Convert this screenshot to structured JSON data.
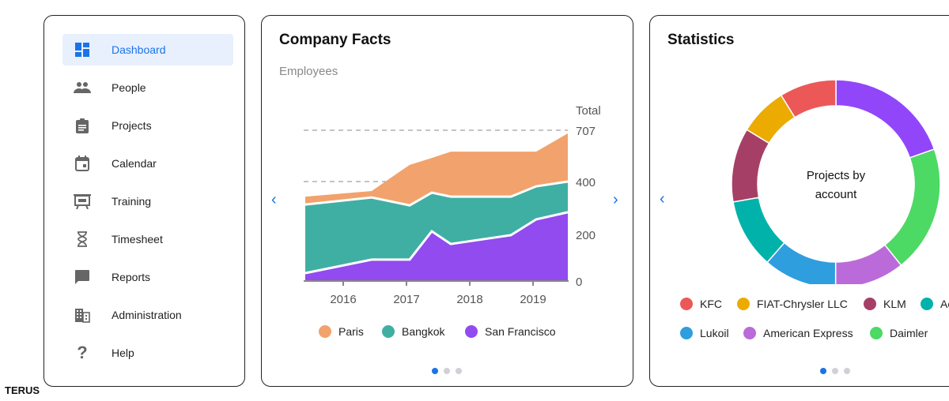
{
  "sidebar": {
    "items": [
      {
        "label": "Dashboard",
        "icon": "dashboard-icon",
        "active": true
      },
      {
        "label": "People",
        "icon": "people-icon"
      },
      {
        "label": "Projects",
        "icon": "clipboard-icon"
      },
      {
        "label": "Calendar",
        "icon": "calendar-icon"
      },
      {
        "label": "Training",
        "icon": "presentation-icon"
      },
      {
        "label": "Timesheet",
        "icon": "hourglass-icon"
      },
      {
        "label": "Reports",
        "icon": "reports-icon"
      },
      {
        "label": "Administration",
        "icon": "building-icon"
      },
      {
        "label": "Help",
        "icon": "help-icon"
      }
    ]
  },
  "brand": "TERUS",
  "company_facts": {
    "title": "Company Facts",
    "subtitle": "Employees",
    "page": 1,
    "pages": 3
  },
  "statistics": {
    "title": "Statistics",
    "page": 1,
    "pages": 3
  },
  "colors": {
    "accent": "#1a73e8",
    "paris": "#f2a26c",
    "bangkok": "#40afa3",
    "san_francisco": "#914bef"
  },
  "chart_data": [
    {
      "type": "area",
      "stacked": true,
      "ylabel": "Total",
      "y_ticks": [
        0,
        200,
        400,
        707
      ],
      "x_ticks": [
        "2016",
        "2017",
        "2018",
        "2019"
      ],
      "x": [
        2015.4,
        2016.45,
        2017.05,
        2017.4,
        2017.7,
        2018.65,
        2019.05,
        2019.55
      ],
      "series": [
        {
          "name": "San Francisco",
          "color": "#914bef",
          "values": [
            34,
            92,
            92,
            212,
            159,
            197,
            257,
            284
          ]
        },
        {
          "name": "Bangkok",
          "color": "#40afa3",
          "values": [
            279,
            248,
            218,
            146,
            184,
            146,
            125,
            116
          ]
        },
        {
          "name": "Paris",
          "color": "#f2a26c",
          "values": [
            30,
            24,
            190,
            183,
            236,
            236,
            197,
            288
          ]
        }
      ],
      "gridlines": "dashed at 400 and 707",
      "legend": "bottom"
    },
    {
      "type": "pie",
      "donut": true,
      "center_label": "Projects by account",
      "slices": [
        {
          "name": "",
          "value": 19.6,
          "color": "#9146fa"
        },
        {
          "name": "Daimler",
          "value": 19.7,
          "color": "#4cd964"
        },
        {
          "name": "American Express",
          "value": 10.8,
          "color": "#bb6bd9"
        },
        {
          "name": "Lukoil",
          "value": 11.4,
          "color": "#2e9ede"
        },
        {
          "name": "Ac",
          "value": 10.8,
          "color": "#00b2a9"
        },
        {
          "name": "KLM",
          "value": 11.5,
          "color": "#a63f66"
        },
        {
          "name": "FIAT-Chrysler LLC",
          "value": 7.5,
          "color": "#ebab00"
        },
        {
          "name": "KFC",
          "value": 8.8,
          "color": "#ec5858"
        }
      ],
      "legend_order": [
        "KFC",
        "FIAT-Chrysler LLC",
        "KLM",
        "Ac",
        "Lukoil",
        "American Express",
        "Daimler"
      ],
      "legend": "bottom"
    }
  ]
}
